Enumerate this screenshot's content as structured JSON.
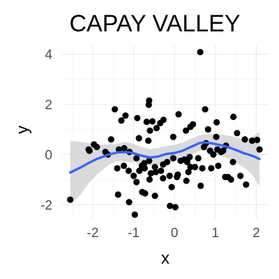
{
  "chart_data": {
    "type": "scatter",
    "title": "CAPAY VALLEY",
    "xlabel": "x",
    "ylabel": "y",
    "xlim": [
      -2.75,
      2.3
    ],
    "ylim": [
      -2.6,
      4.35
    ],
    "x_ticks": [
      -2,
      -1,
      0,
      1,
      2
    ],
    "y_ticks": [
      -2,
      0,
      2,
      4
    ],
    "grid": true,
    "legend": "none",
    "colors": {
      "points": "#000000",
      "smooth_line": "#3366ff",
      "confidence_band": "#d3d3d3",
      "grid_major": "#ebebeb",
      "grid_minor": "#f5f5f5"
    },
    "points": {
      "x": [
        -2.55,
        0.63,
        -0.62,
        -0.63,
        1.03,
        1.44,
        -0.68,
        -0.54,
        -0.35,
        -0.27,
        -0.44,
        0.1,
        0.75,
        -1.46,
        -1.2,
        -1.3,
        -0.91,
        -0.87,
        -0.6,
        -0.64,
        -0.03,
        0.39,
        0.45,
        0.28,
        0.82,
        1.02,
        1.53,
        0.77,
        1.05,
        1.72,
        1.9,
        2.02,
        2.08,
        1.26,
        1.19,
        1.14,
        0.95,
        0.87,
        0.72,
        0.37,
        0.24,
        0.15,
        -0.03,
        -0.18,
        -0.28,
        -0.48,
        -0.62,
        -0.74,
        -0.8,
        -0.93,
        -1.1,
        -1.23,
        -1.36,
        -1.55,
        -1.63,
        -1.9,
        -1.97,
        -2.1,
        -2.08,
        -1.69,
        -1.4,
        -1.24,
        -1.12,
        -1.0,
        -0.86,
        -0.73,
        -0.58,
        -0.33,
        -0.12,
        0.06,
        0.31,
        0.5,
        0.68,
        0.9,
        1.24,
        1.38,
        1.43,
        1.75,
        0.58,
        -0.46,
        -0.28,
        0.08,
        -0.61,
        -0.93,
        -0.79,
        -0.72,
        -0.48,
        0.39,
        0.34,
        0.02,
        -0.11,
        0.64,
        1.31,
        1.61,
        -1.38,
        -1.11,
        -0.07,
        0.29,
        -0.97,
        1.07
      ],
      "y": [
        -1.8,
        4.08,
        2.15,
        1.98,
        1.28,
        1.5,
        1.3,
        1.32,
        1.25,
        1.38,
        1.05,
        1.6,
        1.8,
        1.8,
        1.55,
        1.35,
        1.45,
        0.65,
        0.95,
        0.55,
        0.7,
        1.1,
        1.2,
        0.95,
        1.0,
        0.7,
        0.85,
        0.45,
        0.2,
        0.6,
        0.55,
        0.58,
        0.2,
        0.35,
        0.15,
        0.1,
        0.0,
        0.15,
        0.3,
        -0.1,
        -0.2,
        -0.25,
        -0.15,
        -0.3,
        -0.4,
        -0.5,
        -0.25,
        -0.35,
        -0.45,
        -0.15,
        0.1,
        0.25,
        0.2,
        0.6,
        0.0,
        0.3,
        0.4,
        0.2,
        0.15,
        0.1,
        -0.55,
        -0.45,
        -0.65,
        -0.85,
        -0.65,
        -0.55,
        -0.75,
        -0.65,
        -0.85,
        -0.9,
        -0.3,
        -0.5,
        -0.55,
        -0.55,
        -0.9,
        -1.0,
        -0.3,
        -1.2,
        -0.15,
        -0.7,
        -0.95,
        -0.8,
        -1.0,
        -1.1,
        -1.5,
        -1.55,
        -1.65,
        -0.5,
        -0.7,
        -2.1,
        -2.05,
        -1.25,
        -0.9,
        -0.85,
        -1.6,
        -1.9,
        -1.3,
        -1.05,
        -2.4,
        -0.45
      ]
    },
    "smooth": {
      "x": [
        -2.55,
        -2.3,
        -2.1,
        -1.9,
        -1.6,
        -1.4,
        -1.2,
        -1.0,
        -0.8,
        -0.6,
        -0.4,
        -0.2,
        0.0,
        0.2,
        0.4,
        0.6,
        0.7,
        0.9,
        1.1,
        1.3,
        1.5,
        1.7,
        1.9,
        2.08
      ],
      "y": [
        -0.72,
        -0.52,
        -0.34,
        -0.18,
        0.0,
        0.08,
        0.1,
        0.05,
        -0.05,
        -0.12,
        -0.08,
        0.02,
        0.06,
        0.15,
        0.3,
        0.45,
        0.48,
        0.45,
        0.38,
        0.3,
        0.18,
        0.05,
        -0.05,
        -0.18
      ],
      "upper": [
        0.55,
        0.5,
        0.45,
        0.38,
        0.4,
        0.42,
        0.5,
        0.42,
        0.3,
        0.22,
        0.25,
        0.34,
        0.38,
        0.48,
        0.62,
        0.76,
        0.8,
        0.82,
        0.8,
        0.76,
        0.68,
        0.62,
        0.7,
        0.9
      ],
      "lower": [
        -2.0,
        -1.6,
        -1.15,
        -0.8,
        -0.4,
        -0.26,
        -0.3,
        -0.32,
        -0.4,
        -0.46,
        -0.41,
        -0.3,
        -0.26,
        -0.18,
        -0.02,
        0.14,
        0.16,
        0.08,
        -0.04,
        -0.16,
        -0.32,
        -0.52,
        -0.8,
        -1.26
      ]
    }
  }
}
